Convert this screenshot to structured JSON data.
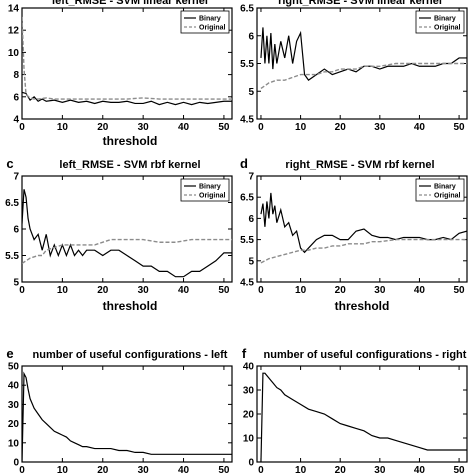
{
  "chart_data": [
    {
      "panel": "",
      "type": "line",
      "title": "left_RMSE - SVM linear kernel",
      "xlabel": "threshold",
      "ylabel": "",
      "xlim": [
        0,
        52
      ],
      "ylim": [
        4,
        14
      ],
      "xticks": [
        0,
        10,
        20,
        30,
        40,
        50
      ],
      "yticks": [
        4,
        6,
        8,
        10,
        12,
        14
      ],
      "legend": "top-right",
      "series": [
        {
          "name": "Binary",
          "style": "solid",
          "x": [
            0,
            1,
            2,
            3,
            4,
            5,
            6,
            8,
            10,
            12,
            14,
            16,
            18,
            20,
            22,
            24,
            26,
            28,
            30,
            32,
            34,
            36,
            38,
            40,
            42,
            44,
            46,
            48,
            50,
            52
          ],
          "y": [
            6.4,
            6.3,
            5.7,
            6.0,
            5.6,
            5.8,
            5.6,
            5.7,
            5.5,
            5.7,
            5.5,
            5.6,
            5.4,
            5.6,
            5.5,
            5.5,
            5.6,
            5.4,
            5.4,
            5.6,
            5.3,
            5.5,
            5.3,
            5.5,
            5.3,
            5.5,
            5.4,
            5.5,
            5.6,
            5.6
          ]
        },
        {
          "name": "Original",
          "style": "dashed",
          "x": [
            0,
            0.5,
            1,
            2,
            3,
            4,
            6,
            8,
            10,
            14,
            18,
            22,
            26,
            30,
            34,
            38,
            42,
            46,
            50,
            52
          ],
          "y": [
            13.2,
            8.5,
            6.2,
            5.9,
            5.8,
            5.8,
            5.9,
            5.8,
            5.8,
            5.8,
            5.8,
            5.8,
            5.8,
            5.9,
            5.8,
            5.8,
            5.8,
            5.8,
            5.8,
            5.8
          ]
        }
      ]
    },
    {
      "panel": "",
      "type": "line",
      "title": "right_RMSE - SVM linear kernel",
      "xlabel": "",
      "ylabel": "",
      "xlim": [
        -1,
        52
      ],
      "ylim": [
        4.5,
        6.5
      ],
      "xticks": [
        0,
        10,
        20,
        30,
        40,
        50
      ],
      "yticks": [
        4.5,
        5,
        5.5,
        6,
        6.5
      ],
      "legend": "top-right",
      "series": [
        {
          "name": "Binary",
          "style": "solid",
          "x": [
            0,
            0.5,
            1,
            1.5,
            2,
            2.5,
            3,
            3.5,
            4,
            5,
            6,
            7,
            8,
            9,
            10,
            11,
            12,
            14,
            16,
            18,
            20,
            22,
            24,
            26,
            28,
            30,
            32,
            34,
            36,
            38,
            40,
            42,
            44,
            46,
            48,
            50,
            52
          ],
          "y": [
            5.6,
            6.15,
            5.5,
            6.0,
            5.5,
            6.05,
            5.4,
            5.85,
            5.5,
            5.9,
            5.6,
            6.0,
            5.5,
            5.9,
            6.05,
            5.3,
            5.2,
            5.3,
            5.4,
            5.3,
            5.35,
            5.4,
            5.35,
            5.45,
            5.45,
            5.4,
            5.45,
            5.45,
            5.45,
            5.5,
            5.45,
            5.45,
            5.45,
            5.5,
            5.5,
            5.6,
            5.6
          ]
        },
        {
          "name": "Original",
          "style": "dashed",
          "x": [
            0,
            2,
            4,
            6,
            8,
            10,
            12,
            14,
            16,
            18,
            20,
            22,
            24,
            26,
            28,
            30,
            34,
            38,
            42,
            46,
            50,
            52
          ],
          "y": [
            5.05,
            5.15,
            5.2,
            5.2,
            5.25,
            5.3,
            5.3,
            5.3,
            5.35,
            5.35,
            5.4,
            5.4,
            5.4,
            5.45,
            5.45,
            5.45,
            5.5,
            5.5,
            5.5,
            5.5,
            5.5,
            5.5
          ]
        }
      ]
    },
    {
      "panel": "c",
      "type": "line",
      "title": "left_RMSE - SVM rbf kernel",
      "xlabel": "threshold",
      "ylabel": "",
      "xlim": [
        0,
        52
      ],
      "ylim": [
        5,
        7
      ],
      "xticks": [
        0,
        10,
        20,
        30,
        40,
        50
      ],
      "yticks": [
        5,
        5.5,
        6,
        6.5,
        7
      ],
      "legend": "top-right",
      "series": [
        {
          "name": "Binary",
          "style": "solid",
          "x": [
            0,
            0.5,
            1,
            1.5,
            2,
            3,
            4,
            5,
            6,
            7,
            8,
            9,
            10,
            11,
            12,
            13,
            14,
            15,
            16,
            18,
            20,
            22,
            24,
            26,
            28,
            30,
            32,
            34,
            36,
            38,
            40,
            42,
            44,
            46,
            48,
            50,
            52
          ],
          "y": [
            6.1,
            6.75,
            6.6,
            6.2,
            6.0,
            5.8,
            5.9,
            5.6,
            5.9,
            5.5,
            5.7,
            5.5,
            5.7,
            5.5,
            5.7,
            5.5,
            5.6,
            5.5,
            5.6,
            5.6,
            5.5,
            5.6,
            5.6,
            5.5,
            5.4,
            5.3,
            5.3,
            5.2,
            5.2,
            5.1,
            5.1,
            5.2,
            5.2,
            5.3,
            5.4,
            5.55,
            5.55
          ]
        },
        {
          "name": "Original",
          "style": "dashed",
          "x": [
            0,
            2,
            4,
            5,
            6,
            8,
            10,
            14,
            18,
            22,
            26,
            30,
            34,
            38,
            42,
            46,
            50,
            52
          ],
          "y": [
            5.35,
            5.45,
            5.5,
            5.5,
            5.6,
            5.65,
            5.7,
            5.7,
            5.7,
            5.8,
            5.8,
            5.8,
            5.75,
            5.75,
            5.8,
            5.8,
            5.8,
            5.8
          ]
        }
      ]
    },
    {
      "panel": "d",
      "type": "line",
      "title": "right_RMSE - SVM rbf kernel",
      "xlabel": "threshold",
      "ylabel": "",
      "xlim": [
        -1,
        52
      ],
      "ylim": [
        4.5,
        7
      ],
      "xticks": [
        0,
        10,
        20,
        30,
        40,
        50
      ],
      "yticks": [
        4.5,
        5,
        5.5,
        6,
        6.5,
        7
      ],
      "legend": "top-right",
      "series": [
        {
          "name": "Binary",
          "style": "solid",
          "x": [
            0,
            0.5,
            1,
            1.5,
            2,
            2.5,
            3,
            3.5,
            4,
            5,
            6,
            7,
            8,
            9,
            10,
            11,
            12,
            14,
            16,
            18,
            20,
            22,
            24,
            26,
            28,
            30,
            32,
            34,
            36,
            38,
            40,
            42,
            44,
            46,
            48,
            50,
            52
          ],
          "y": [
            6.1,
            6.35,
            5.8,
            6.4,
            6.0,
            6.6,
            6.1,
            6.3,
            5.9,
            6.2,
            5.8,
            5.9,
            5.6,
            5.7,
            5.3,
            5.2,
            5.3,
            5.5,
            5.6,
            5.6,
            5.5,
            5.5,
            5.7,
            5.75,
            5.6,
            5.55,
            5.55,
            5.5,
            5.55,
            5.55,
            5.55,
            5.5,
            5.5,
            5.55,
            5.5,
            5.65,
            5.7
          ]
        },
        {
          "name": "Original",
          "style": "dashed",
          "x": [
            0,
            2,
            4,
            6,
            8,
            10,
            12,
            14,
            16,
            18,
            20,
            22,
            24,
            26,
            28,
            30,
            34,
            38,
            42,
            46,
            50,
            52
          ],
          "y": [
            4.95,
            5.05,
            5.1,
            5.15,
            5.2,
            5.25,
            5.25,
            5.3,
            5.3,
            5.35,
            5.35,
            5.4,
            5.4,
            5.4,
            5.45,
            5.45,
            5.5,
            5.5,
            5.5,
            5.5,
            5.5,
            5.5
          ]
        }
      ]
    },
    {
      "panel": "e",
      "type": "line",
      "title": "number of useful configurations - left",
      "xlabel": "",
      "ylabel": "",
      "xlim": [
        0,
        52
      ],
      "ylim": [
        0,
        50
      ],
      "xticks": [
        0,
        10,
        20,
        30,
        40,
        50
      ],
      "yticks": [
        0,
        10,
        20,
        30,
        40,
        50
      ],
      "legend": "none",
      "series": [
        {
          "name": "",
          "style": "solid",
          "x": [
            0,
            0.5,
            1,
            1.5,
            2,
            3,
            4,
            5,
            6,
            7,
            8,
            9,
            10,
            11,
            12,
            13,
            14,
            15,
            16,
            18,
            20,
            22,
            24,
            26,
            28,
            30,
            32,
            34,
            36,
            38,
            40,
            42,
            44,
            46,
            48,
            50,
            52
          ],
          "y": [
            0,
            46,
            44,
            38,
            33,
            28,
            25,
            22,
            20,
            18,
            16,
            15,
            14,
            13,
            11,
            10,
            9,
            8,
            8,
            7,
            7,
            7,
            6,
            6,
            5,
            5,
            4,
            4,
            4,
            4,
            4,
            4,
            4,
            4,
            4,
            4,
            4
          ]
        }
      ]
    },
    {
      "panel": "f",
      "type": "line",
      "title": "number of useful configurations - right",
      "xlabel": "",
      "ylabel": "",
      "xlim": [
        -1,
        52
      ],
      "ylim": [
        0,
        40
      ],
      "xticks": [
        0,
        10,
        20,
        30,
        40,
        50
      ],
      "yticks": [
        0,
        10,
        20,
        30,
        40
      ],
      "legend": "none",
      "series": [
        {
          "name": "",
          "style": "solid",
          "x": [
            0,
            0.5,
            1,
            2,
            3,
            4,
            5,
            6,
            8,
            10,
            12,
            14,
            16,
            18,
            20,
            22,
            24,
            26,
            28,
            30,
            32,
            34,
            36,
            38,
            40,
            42,
            44,
            46,
            48,
            50,
            52
          ],
          "y": [
            0,
            37,
            37,
            35,
            33,
            31,
            30,
            28,
            26,
            24,
            22,
            21,
            20,
            18,
            16,
            15,
            14,
            13,
            11,
            10,
            10,
            9,
            8,
            7,
            6,
            5,
            5,
            5,
            5,
            5,
            5
          ]
        }
      ]
    }
  ]
}
